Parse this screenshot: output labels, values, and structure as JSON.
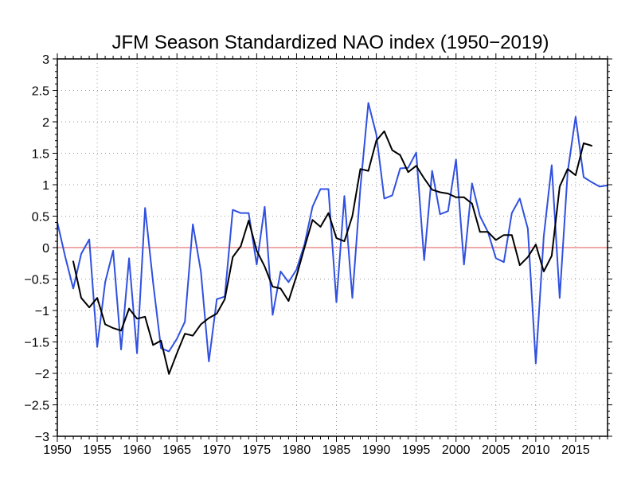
{
  "chart_data": {
    "type": "line",
    "title": "JFM Season Standardized NAO index (1950−2019)",
    "xlabel": "",
    "ylabel": "",
    "xlim": [
      1950,
      2019
    ],
    "ylim": [
      -3,
      3
    ],
    "grid": true,
    "x_ticks": [
      "1950",
      "1955",
      "1960",
      "1965",
      "1970",
      "1975",
      "1980",
      "1985",
      "1990",
      "1995",
      "2000",
      "2005",
      "2010",
      "2015"
    ],
    "y_ticks": [
      "3",
      "2.5",
      "2",
      "1.5",
      "1",
      "0.5",
      "0",
      "−0.5",
      "−1",
      "−1.5",
      "−2",
      "−2.5",
      "−3"
    ],
    "zero_line_color": "#e05050",
    "series": [
      {
        "color": "#3050e0",
        "x": [
          1950,
          1951,
          1952,
          1953,
          1954,
          1955,
          1956,
          1957,
          1958,
          1959,
          1960,
          1961,
          1962,
          1963,
          1964,
          1965,
          1966,
          1967,
          1968,
          1969,
          1970,
          1971,
          1972,
          1973,
          1974,
          1975,
          1976,
          1977,
          1978,
          1979,
          1980,
          1981,
          1982,
          1983,
          1984,
          1985,
          1986,
          1987,
          1988,
          1989,
          1990,
          1991,
          1992,
          1993,
          1994,
          1995,
          1996,
          1997,
          1998,
          1999,
          2000,
          2001,
          2002,
          2003,
          2004,
          2005,
          2006,
          2007,
          2008,
          2009,
          2010,
          2011,
          2012,
          2013,
          2014,
          2015,
          2016,
          2017,
          2018,
          2019
        ],
        "values": [
          0.4,
          -0.15,
          -0.65,
          -0.1,
          0.13,
          -1.58,
          -0.55,
          -0.05,
          -1.62,
          -0.17,
          -1.68,
          0.63,
          -0.55,
          -1.6,
          -1.65,
          -1.45,
          -1.18,
          0.37,
          -0.38,
          -1.81,
          -0.82,
          -0.78,
          0.6,
          0.55,
          0.55,
          -0.27,
          0.65,
          -1.07,
          -0.38,
          -0.55,
          -0.35,
          0.05,
          0.65,
          0.93,
          0.93,
          -0.87,
          0.82,
          -0.8,
          0.95,
          2.3,
          1.8,
          0.78,
          0.83,
          1.26,
          1.27,
          1.51,
          -0.2,
          1.22,
          0.53,
          0.58,
          1.4,
          -0.27,
          1.02,
          0.5,
          0.25,
          -0.17,
          -0.23,
          0.55,
          0.78,
          0.3,
          -1.84,
          0.18,
          1.31,
          -0.8,
          1.2,
          2.08,
          1.12,
          1.04,
          0.97,
          0.99
        ]
      },
      {
        "color": "#000000",
        "x": [
          1952,
          1953,
          1954,
          1955,
          1956,
          1957,
          1958,
          1959,
          1960,
          1961,
          1962,
          1963,
          1964,
          1965,
          1966,
          1967,
          1968,
          1969,
          1970,
          1971,
          1972,
          1973,
          1974,
          1975,
          1976,
          1977,
          1978,
          1979,
          1980,
          1981,
          1982,
          1983,
          1984,
          1985,
          1986,
          1987,
          1988,
          1989,
          1990,
          1991,
          1992,
          1993,
          1994,
          1995,
          1996,
          1997,
          1998,
          1999,
          2000,
          2001,
          2002,
          2003,
          2004,
          2005,
          2006,
          2007,
          2008,
          2009,
          2010,
          2011,
          2012,
          2013,
          2014,
          2015,
          2016,
          2017
        ],
        "values": [
          -0.22,
          -0.8,
          -0.95,
          -0.8,
          -1.22,
          -1.28,
          -1.32,
          -0.97,
          -1.13,
          -1.1,
          -1.55,
          -1.48,
          -2.01,
          -1.68,
          -1.37,
          -1.4,
          -1.22,
          -1.12,
          -1.05,
          -0.82,
          -0.15,
          0.02,
          0.43,
          -0.05,
          -0.3,
          -0.62,
          -0.65,
          -0.85,
          -0.45,
          0,
          0.44,
          0.33,
          0.55,
          0.15,
          0.1,
          0.5,
          1.25,
          1.22,
          1.7,
          1.85,
          1.55,
          1.47,
          1.2,
          1.3,
          1.1,
          0.92,
          0.88,
          0.86,
          0.8,
          0.8,
          0.7,
          0.25,
          0.25,
          0.12,
          0.2,
          0.2,
          -0.28,
          -0.15,
          0.05,
          -0.38,
          -0.13,
          0.97,
          1.25,
          1.15,
          1.66,
          1.62
        ]
      }
    ]
  }
}
